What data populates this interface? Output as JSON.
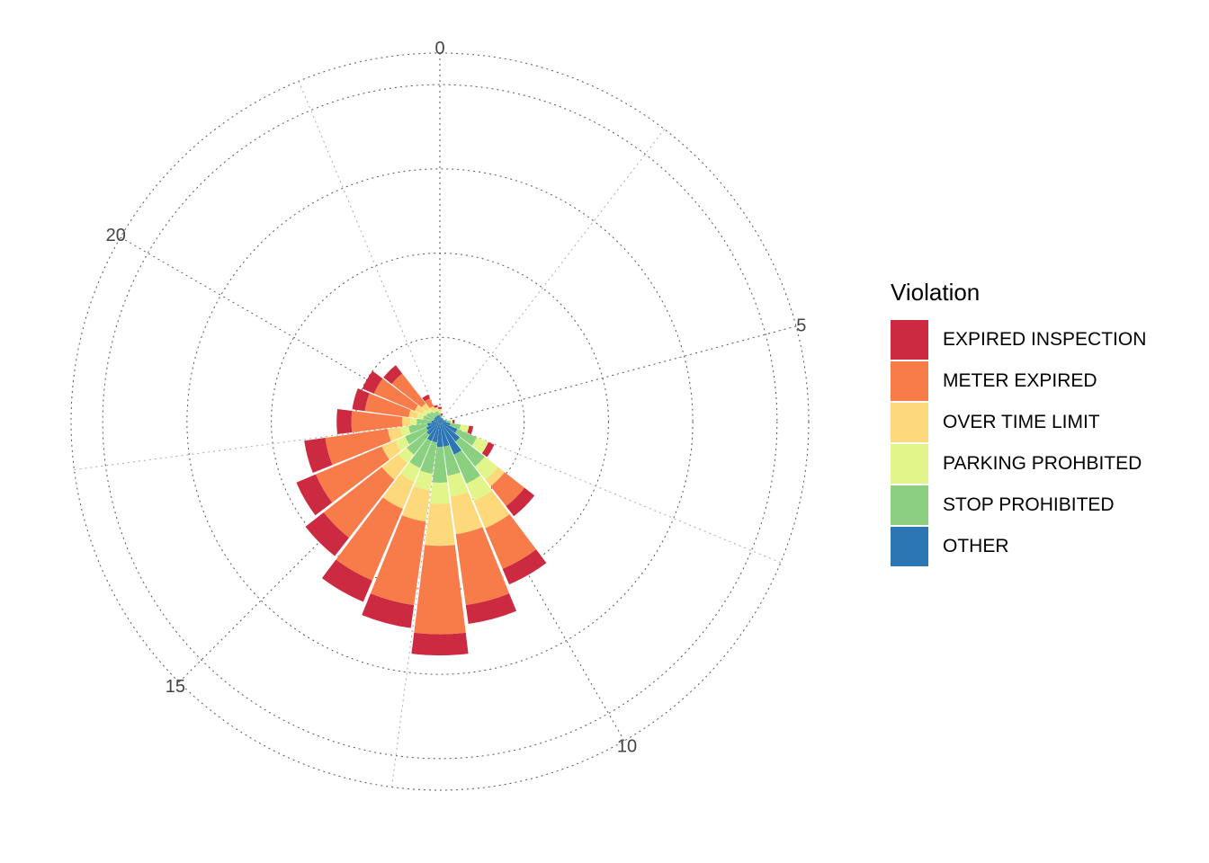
{
  "chart_data": {
    "type": "polar-stacked-bar",
    "title": "",
    "hour_labels": [
      "0",
      "5",
      "10",
      "15",
      "20"
    ],
    "hours": [
      0,
      1,
      2,
      3,
      4,
      5,
      6,
      7,
      8,
      9,
      10,
      11,
      12,
      13,
      14,
      15,
      16,
      17,
      18,
      19,
      20,
      21,
      22,
      23
    ],
    "radial_grid": [
      40,
      80,
      120,
      160
    ],
    "radial_max": 175,
    "legend": {
      "title": "Violation",
      "position": "right",
      "entries": [
        "EXPIRED INSPECTION",
        "METER EXPIRED",
        "OVER TIME LIMIT",
        "PARKING PROHBITED",
        "STOP PROHIBITED",
        "OTHER"
      ]
    },
    "colors": {
      "EXPIRED INSPECTION": "#CC2A41",
      "METER EXPIRED": "#F87C4A",
      "OVER TIME LIMIT": "#FDD97B",
      "PARKING PROHBITED": "#E2F58A",
      "STOP PROHIBITED": "#8BD081",
      "OTHER": "#2B76B3"
    },
    "stack_order": [
      "OTHER",
      "STOP PROHIBITED",
      "PARKING PROHBITED",
      "OVER TIME LIMIT",
      "METER EXPIRED",
      "EXPIRED INSPECTION"
    ],
    "series": [
      {
        "name": "OTHER",
        "values": [
          3,
          2,
          2,
          2,
          2,
          2,
          3,
          5,
          9,
          12,
          17,
          12,
          12,
          10,
          10,
          8,
          7,
          6,
          4,
          3,
          3,
          3,
          3,
          3
        ]
      },
      {
        "name": "STOP PROHIBITED",
        "values": [
          1,
          1,
          0,
          0,
          0,
          1,
          2,
          5,
          10,
          15,
          15,
          14,
          17,
          15,
          14,
          12,
          11,
          9,
          7,
          5,
          4,
          3,
          2,
          2
        ]
      },
      {
        "name": "PARKING PROHBITED",
        "values": [
          1,
          0,
          0,
          0,
          0,
          0,
          1,
          4,
          6,
          8,
          9,
          10,
          10,
          8,
          7,
          5,
          5,
          4,
          3,
          3,
          2,
          2,
          1,
          1
        ]
      },
      {
        "name": "OVER TIME LIMIT",
        "values": [
          1,
          0,
          0,
          0,
          0,
          0,
          0,
          0,
          0,
          4,
          14,
          18,
          20,
          15,
          14,
          10,
          7,
          6,
          4,
          4,
          4,
          3,
          2,
          1
        ]
      },
      {
        "name": "METER EXPIRED",
        "values": [
          0,
          0,
          0,
          0,
          0,
          0,
          0,
          0,
          0,
          12,
          21,
          34,
          42,
          40,
          37,
          35,
          34,
          30,
          24,
          21,
          21,
          18,
          4,
          0
        ]
      },
      {
        "name": "EXPIRED INSPECTION",
        "values": [
          1,
          1,
          0,
          0,
          0,
          0,
          1,
          2,
          3,
          6,
          8,
          9,
          10,
          11,
          11,
          11,
          10,
          10,
          7,
          6,
          6,
          5,
          2,
          1
        ]
      }
    ]
  }
}
